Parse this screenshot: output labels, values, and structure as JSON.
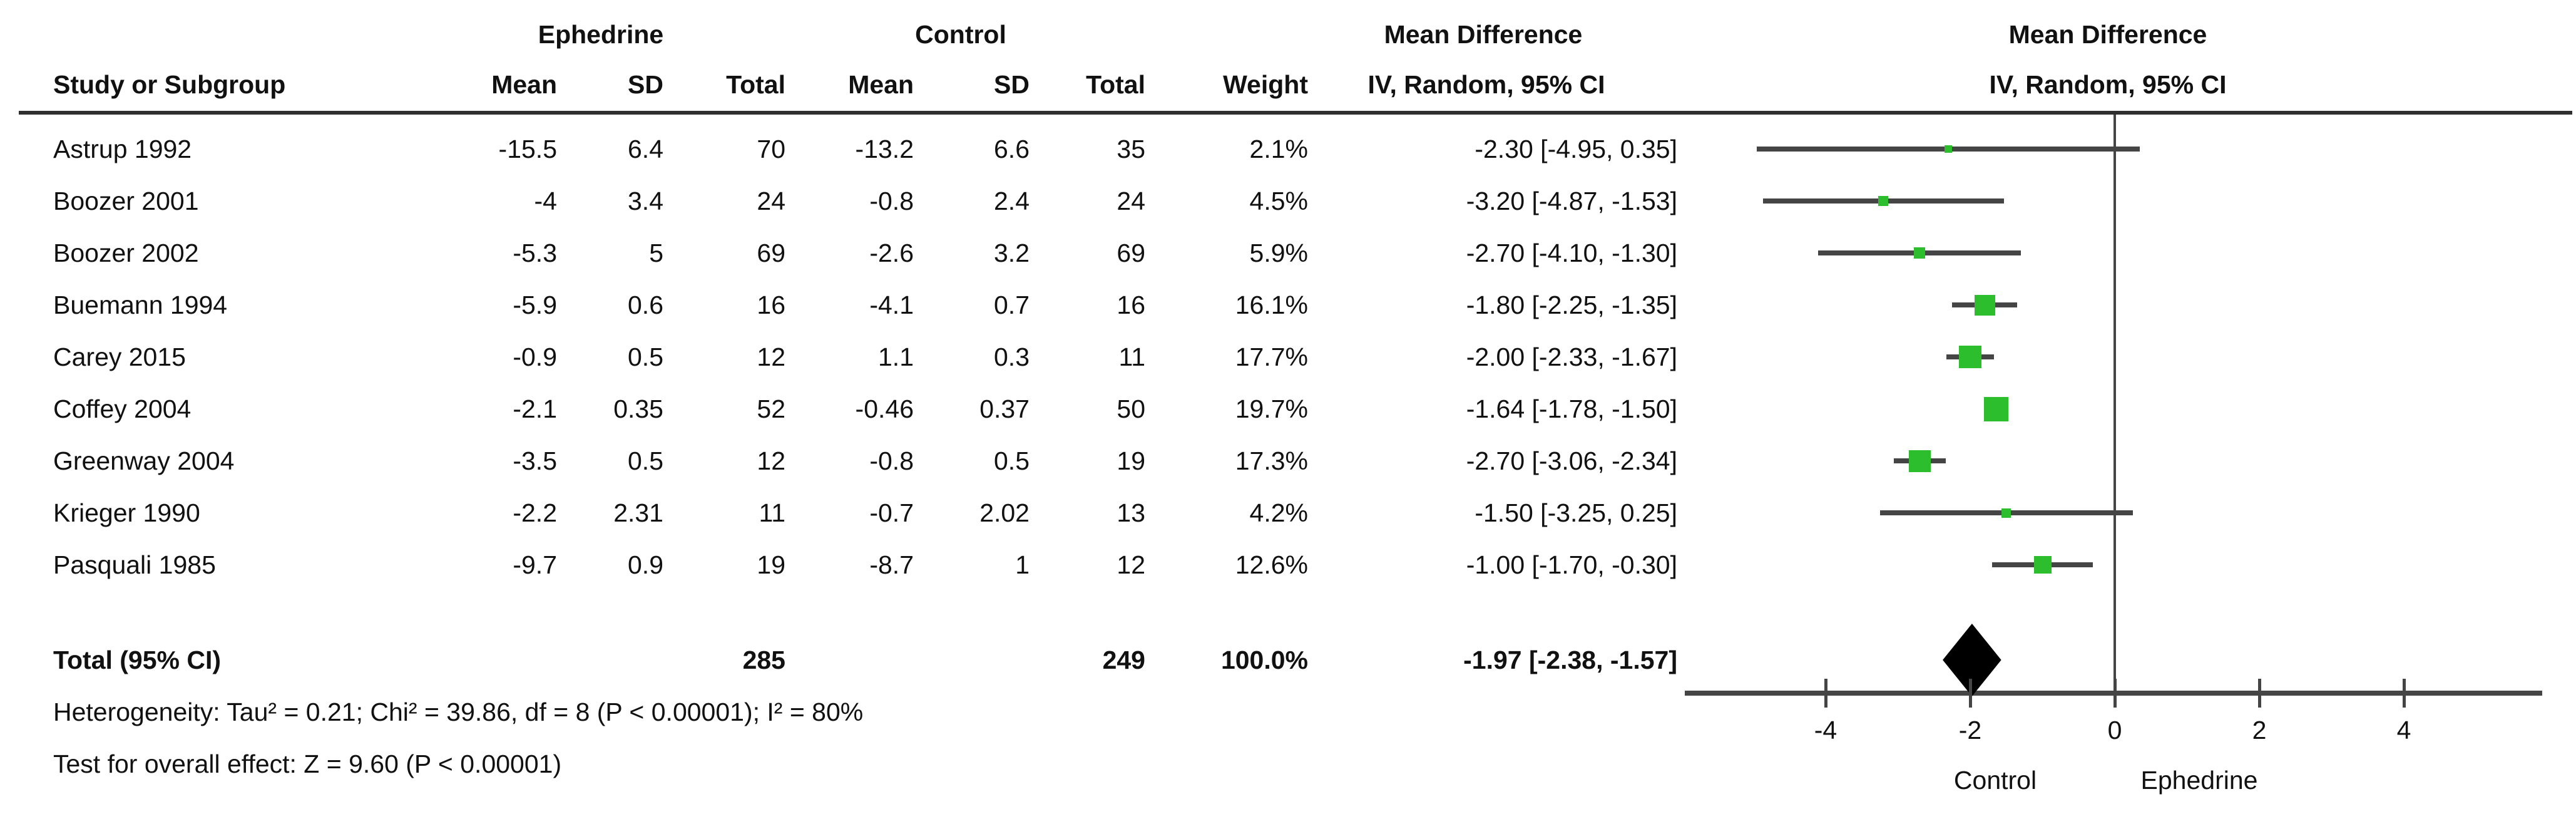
{
  "chart_data": {
    "type": "forest",
    "group1_label": "Ephedrine",
    "group2_label": "Control",
    "effect_label": "Mean Difference",
    "method_label": "IV, Random, 95% CI",
    "col_study": "Study or Subgroup",
    "col_mean": "Mean",
    "col_sd": "SD",
    "col_total": "Total",
    "col_weight": "Weight",
    "studies": [
      {
        "name": "Astrup 1992",
        "e_mean": "-15.5",
        "e_sd": "6.4",
        "e_total": "70",
        "c_mean": "-13.2",
        "c_sd": "6.6",
        "c_total": "35",
        "weight": "2.1%",
        "weight_pct": 2.1,
        "md": -2.3,
        "ci_low": -4.95,
        "ci_high": 0.35,
        "label": "-2.30 [-4.95, 0.35]"
      },
      {
        "name": "Boozer 2001",
        "e_mean": "-4",
        "e_sd": "3.4",
        "e_total": "24",
        "c_mean": "-0.8",
        "c_sd": "2.4",
        "c_total": "24",
        "weight": "4.5%",
        "weight_pct": 4.5,
        "md": -3.2,
        "ci_low": -4.87,
        "ci_high": -1.53,
        "label": "-3.20 [-4.87, -1.53]"
      },
      {
        "name": "Boozer 2002",
        "e_mean": "-5.3",
        "e_sd": "5",
        "e_total": "69",
        "c_mean": "-2.6",
        "c_sd": "3.2",
        "c_total": "69",
        "weight": "5.9%",
        "weight_pct": 5.9,
        "md": -2.7,
        "ci_low": -4.1,
        "ci_high": -1.3,
        "label": "-2.70 [-4.10, -1.30]"
      },
      {
        "name": "Buemann 1994",
        "e_mean": "-5.9",
        "e_sd": "0.6",
        "e_total": "16",
        "c_mean": "-4.1",
        "c_sd": "0.7",
        "c_total": "16",
        "weight": "16.1%",
        "weight_pct": 16.1,
        "md": -1.8,
        "ci_low": -2.25,
        "ci_high": -1.35,
        "label": "-1.80 [-2.25, -1.35]"
      },
      {
        "name": "Carey 2015",
        "e_mean": "-0.9",
        "e_sd": "0.5",
        "e_total": "12",
        "c_mean": "1.1",
        "c_sd": "0.3",
        "c_total": "11",
        "weight": "17.7%",
        "weight_pct": 17.7,
        "md": -2.0,
        "ci_low": -2.33,
        "ci_high": -1.67,
        "label": "-2.00 [-2.33, -1.67]"
      },
      {
        "name": "Coffey 2004",
        "e_mean": "-2.1",
        "e_sd": "0.35",
        "e_total": "52",
        "c_mean": "-0.46",
        "c_sd": "0.37",
        "c_total": "50",
        "weight": "19.7%",
        "weight_pct": 19.7,
        "md": -1.64,
        "ci_low": -1.78,
        "ci_high": -1.5,
        "label": "-1.64 [-1.78, -1.50]"
      },
      {
        "name": "Greenway 2004",
        "e_mean": "-3.5",
        "e_sd": "0.5",
        "e_total": "12",
        "c_mean": "-0.8",
        "c_sd": "0.5",
        "c_total": "19",
        "weight": "17.3%",
        "weight_pct": 17.3,
        "md": -2.7,
        "ci_low": -3.06,
        "ci_high": -2.34,
        "label": "-2.70 [-3.06, -2.34]"
      },
      {
        "name": "Krieger 1990",
        "e_mean": "-2.2",
        "e_sd": "2.31",
        "e_total": "11",
        "c_mean": "-0.7",
        "c_sd": "2.02",
        "c_total": "13",
        "weight": "4.2%",
        "weight_pct": 4.2,
        "md": -1.5,
        "ci_low": -3.25,
        "ci_high": 0.25,
        "label": "-1.50 [-3.25, 0.25]"
      },
      {
        "name": "Pasquali 1985",
        "e_mean": "-9.7",
        "e_sd": "0.9",
        "e_total": "19",
        "c_mean": "-8.7",
        "c_sd": "1",
        "c_total": "12",
        "weight": "12.6%",
        "weight_pct": 12.6,
        "md": -1.0,
        "ci_low": -1.7,
        "ci_high": -0.3,
        "label": "-1.00 [-1.70, -0.30]"
      }
    ],
    "total": {
      "name": "Total (95% CI)",
      "e_total": "285",
      "c_total": "249",
      "weight": "100.0%",
      "md": -1.97,
      "ci_low": -2.38,
      "ci_high": -1.57,
      "label": "-1.97 [-2.38, -1.57]"
    },
    "heterogeneity": "Heterogeneity: Tau² = 0.21; Chi² = 39.86, df = 8 (P < 0.00001); I² = 80%",
    "overall_effect": "Test for overall effect: Z = 9.60 (P < 0.00001)",
    "axis": {
      "ticks": [
        -4,
        -2,
        0,
        2,
        4
      ],
      "min": -5.9,
      "max": 5.9,
      "left_label": "Control",
      "right_label": "Ephedrine"
    },
    "marker_color": "#2DBE2D",
    "line_color": "#454545"
  }
}
